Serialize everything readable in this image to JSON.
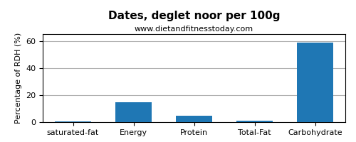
{
  "chart_data": {
    "type": "bar",
    "title": "Dates, deglet noor per 100g",
    "subtitle": "www.dietandfitnesstoday.com",
    "categories": [
      "saturated-fat",
      "Energy",
      "Protein",
      "Total-Fat",
      "Carbohydrate"
    ],
    "values": [
      0.3,
      14.5,
      4.5,
      1.2,
      58.5
    ],
    "ylabel": "Percentage of RDH (%)",
    "ylim": [
      0,
      65
    ],
    "yticks": [
      0,
      20,
      40,
      60
    ],
    "grid": true
  }
}
